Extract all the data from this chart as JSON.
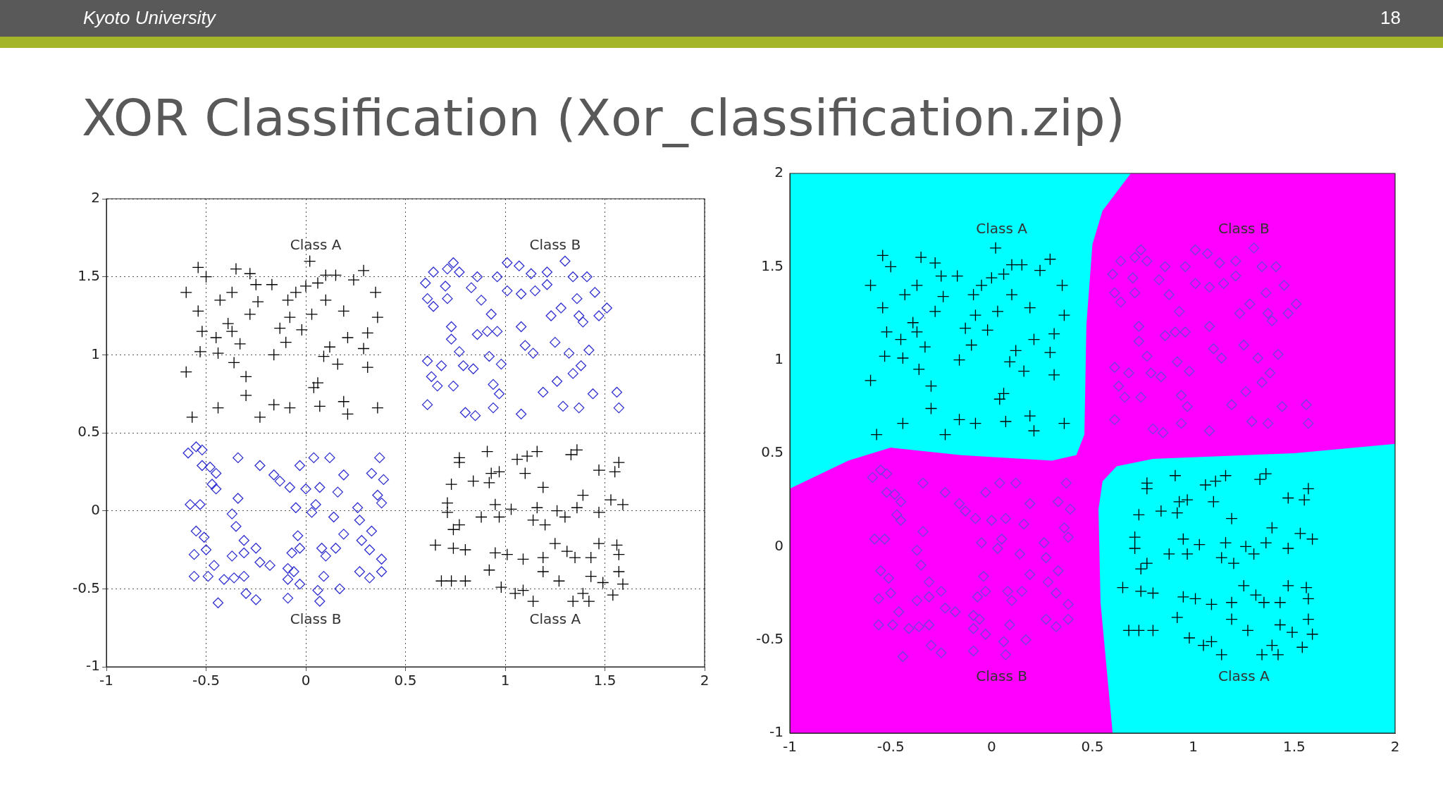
{
  "chart_data": [
    {
      "type": "scatter",
      "title": "XOR Classification (Xor_classification.zip)",
      "xlim": [
        -1,
        2
      ],
      "ylim": [
        -1,
        2
      ],
      "xticks": [
        -1,
        -0.5,
        0,
        0.5,
        1,
        1.5,
        2
      ],
      "yticks": [
        -1,
        -0.5,
        0,
        0.5,
        1,
        1.5,
        2
      ],
      "grid": true,
      "line_style": "dotted",
      "annotations": [
        "Kyoto University",
        "18",
        "Class A",
        "Class B",
        "Class B",
        "Class A"
      ],
      "series": [
        {
          "color": "#000000",
          "marker": "cross",
          "x": [
            -0.54,
            -0.5,
            -0.6,
            -0.54,
            -0.52,
            -0.53,
            -0.6,
            -0.57,
            -0.44,
            -0.43,
            -0.37,
            -0.35,
            -0.28,
            -0.25,
            -0.17,
            -0.24,
            -0.28,
            -0.39,
            -0.37,
            -0.45,
            -0.33,
            -0.44,
            -0.36,
            -0.3,
            -0.3,
            -0.23,
            -0.16,
            -0.08,
            -0.16,
            -0.1,
            -0.13,
            -0.08,
            -0.09,
            -0.05,
            0,
            0.02,
            0.06,
            0.1,
            0.15,
            0.1,
            0.03,
            -0.02,
            0.19,
            0.21,
            0.12,
            0.09,
            0.16,
            0.06,
            0.04,
            0.07,
            0.19,
            0.21,
            0.36,
            0.31,
            0.29,
            0.31,
            0.36,
            0.35,
            0.29,
            0.24,
            0.77,
            0.77,
            0.91,
            1.06,
            1.11,
            1.16,
            1.1,
            1.33,
            1.36,
            1.47,
            1.55,
            1.57,
            0.93,
            0.97,
            0.84,
            0.92,
            0.73,
            1.19,
            1.39,
            1.36,
            1.53,
            1.59,
            1.47,
            0.71,
            0.71,
            0.88,
            0.95,
            0.97,
            1.03,
            1.16,
            1.14,
            1.2,
            1.26,
            1.3,
            0.74,
            0.77,
            0.65,
            0.74,
            0.8,
            0.95,
            1.01,
            1.09,
            1.19,
            1.19,
            1.25,
            1.31,
            1.35,
            1.43,
            1.47,
            1.56,
            1.57,
            1.57,
            0.92,
            0.68,
            0.73,
            0.8,
            0.98,
            1.05,
            1.09,
            1.14,
            1.27,
            1.34,
            1.39,
            1.42,
            1.43,
            1.49,
            1.54,
            1.59
          ],
          "values": [
            1.56,
            1.5,
            1.4,
            1.28,
            1.15,
            1.02,
            0.89,
            0.6,
            0.66,
            1.35,
            1.4,
            1.55,
            1.52,
            1.45,
            1.45,
            1.34,
            1.26,
            1.2,
            1.15,
            1.11,
            1.07,
            1.01,
            0.95,
            0.86,
            0.74,
            0.6,
            0.68,
            0.66,
            1,
            1.08,
            1.17,
            1.24,
            1.35,
            1.4,
            1.44,
            1.6,
            1.46,
            1.51,
            1.51,
            1.35,
            1.26,
            1.16,
            1.28,
            1.11,
            1.05,
            0.99,
            0.94,
            0.82,
            0.79,
            0.67,
            0.7,
            0.62,
            0.66,
            0.92,
            1.04,
            1.14,
            1.24,
            1.4,
            1.54,
            1.48,
            0.34,
            0.31,
            0.38,
            0.33,
            0.35,
            0.38,
            0.24,
            0.36,
            0.39,
            0.26,
            0.25,
            0.31,
            0.24,
            0.25,
            0.19,
            0.18,
            0.17,
            0.15,
            0.1,
            0.02,
            0.07,
            0.04,
            -0.01,
            0.05,
            -0.01,
            -0.04,
            0.04,
            -0.04,
            0.01,
            0.02,
            -0.06,
            -0.09,
            0,
            -0.04,
            -0.12,
            -0.09,
            -0.22,
            -0.24,
            -0.25,
            -0.27,
            -0.28,
            -0.31,
            -0.3,
            -0.39,
            -0.21,
            -0.26,
            -0.3,
            -0.3,
            -0.21,
            -0.22,
            -0.28,
            -0.39,
            -0.38,
            -0.45,
            -0.45,
            -0.45,
            -0.49,
            -0.53,
            -0.51,
            -0.58,
            -0.45,
            -0.58,
            -0.53,
            -0.58,
            -0.42,
            -0.46,
            -0.54,
            -0.47
          ]
        },
        {
          "color": "#3030d0",
          "marker": "diamond",
          "x": [
            0.6,
            0.61,
            0.64,
            0.71,
            0.74,
            0.77,
            0.7,
            0.71,
            0.64,
            0.73,
            0.73,
            0.77,
            0.61,
            0.68,
            0.63,
            0.66,
            0.74,
            0.61,
            0.8,
            0.85,
            0.94,
            0.97,
            0.94,
            0.84,
            0.79,
            0.92,
            0.98,
            0.86,
            0.91,
            0.96,
            0.93,
            0.88,
            0.83,
            0.86,
            0.96,
            1.01,
            1.07,
            1.01,
            1.08,
            1.13,
            1.15,
            1.21,
            1.21,
            1.3,
            1.34,
            1.41,
            1.45,
            1.36,
            1.28,
            1.23,
            1.37,
            1.39,
            1.47,
            1.51,
            1.08,
            1.25,
            1.1,
            1.14,
            1.32,
            1.42,
            1.38,
            1.34,
            1.26,
            1.19,
            1.29,
            1.37,
            1.44,
            1.08,
            1.56,
            1.57,
            -0.59,
            -0.55,
            -0.52,
            -0.52,
            -0.48,
            -0.45,
            -0.47,
            -0.45,
            -0.58,
            -0.53,
            -0.55,
            -0.51,
            -0.5,
            -0.56,
            -0.56,
            -0.49,
            -0.46,
            -0.44,
            -0.41,
            -0.36,
            -0.37,
            -0.31,
            -0.31,
            -0.35,
            -0.37,
            -0.34,
            -0.34,
            -0.3,
            -0.25,
            -0.31,
            -0.25,
            -0.23,
            -0.18,
            -0.23,
            -0.16,
            -0.13,
            -0.08,
            -0.03,
            0.04,
            0.12,
            0,
            -0.05,
            0.03,
            0.07,
            0.05,
            0.16,
            0.19,
            0.14,
            -0.04,
            -0.07,
            -0.03,
            -0.09,
            -0.06,
            -0.09,
            -0.03,
            -0.09,
            0.06,
            0.07,
            0.09,
            0.08,
            0.1,
            0.15,
            0.19,
            0.17,
            0.26,
            0.27,
            0.28,
            0.32,
            0.27,
            0.32,
            0.38,
            0.38,
            0.38,
            0.36,
            0.33,
            0.39,
            0.37,
            0.33
          ],
          "values": [
            1.46,
            1.36,
            1.53,
            1.55,
            1.59,
            1.53,
            1.44,
            1.36,
            1.31,
            1.18,
            1.1,
            1.02,
            0.96,
            0.93,
            0.86,
            0.8,
            0.8,
            0.68,
            0.63,
            0.61,
            0.66,
            0.75,
            0.81,
            0.91,
            0.93,
            0.99,
            0.94,
            1.13,
            1.15,
            1.15,
            1.26,
            1.35,
            1.43,
            1.5,
            1.5,
            1.59,
            1.57,
            1.41,
            1.39,
            1.52,
            1.41,
            1.53,
            1.45,
            1.6,
            1.5,
            1.5,
            1.4,
            1.36,
            1.3,
            1.25,
            1.25,
            1.21,
            1.25,
            1.3,
            1.18,
            1.08,
            1.06,
            1.01,
            1.01,
            1.03,
            0.93,
            0.88,
            0.83,
            0.76,
            0.67,
            0.66,
            0.75,
            0.62,
            0.76,
            0.66,
            0.37,
            0.41,
            0.39,
            0.29,
            0.28,
            0.24,
            0.17,
            0.14,
            0.04,
            0.04,
            -0.13,
            -0.17,
            -0.25,
            -0.28,
            -0.42,
            -0.42,
            -0.35,
            -0.59,
            -0.44,
            -0.43,
            -0.29,
            -0.27,
            -0.19,
            -0.1,
            -0.02,
            0.08,
            0.34,
            -0.53,
            -0.57,
            -0.42,
            -0.24,
            -0.33,
            -0.35,
            0.29,
            0.23,
            0.19,
            0.15,
            0.29,
            0.34,
            0.34,
            0.14,
            0.02,
            -0.01,
            0.15,
            0.04,
            0.12,
            0.23,
            -0.04,
            -0.16,
            -0.27,
            -0.24,
            -0.37,
            -0.39,
            -0.44,
            -0.47,
            -0.56,
            -0.51,
            -0.58,
            -0.42,
            -0.24,
            -0.29,
            -0.24,
            -0.15,
            -0.5,
            0.02,
            -0.06,
            -0.19,
            -0.25,
            -0.39,
            -0.43,
            -0.31,
            -0.39,
            0.05,
            0.1,
            0.24,
            0.2,
            0.34,
            -0.13
          ]
        }
      ]
    },
    {
      "type": "scatter",
      "xlim": [
        -1,
        2
      ],
      "ylim": [
        -1,
        2
      ],
      "xticks": [
        -1,
        -0.5,
        0,
        0.5,
        1,
        1.5,
        2
      ],
      "yticks": [
        -1,
        -0.5,
        0,
        0.5,
        1,
        1.5,
        2
      ],
      "annotations": [
        "Class A",
        "Class B",
        "Class B",
        "Class A"
      ],
      "series": [
        {
          "color": "#000000",
          "marker": "cross",
          "x": [
            -0.54,
            -0.5,
            -0.6,
            -0.54,
            -0.52,
            -0.53,
            -0.6,
            -0.57,
            -0.44,
            -0.43,
            -0.37,
            -0.35,
            -0.28,
            -0.25,
            -0.17,
            -0.24,
            -0.28,
            -0.39,
            -0.37,
            -0.45,
            -0.33,
            -0.44,
            -0.36,
            -0.3,
            -0.3,
            -0.23,
            -0.16,
            -0.08,
            -0.16,
            -0.1,
            -0.13,
            -0.08,
            -0.09,
            -0.05,
            0,
            0.02,
            0.06,
            0.1,
            0.15,
            0.1,
            0.03,
            -0.02,
            0.19,
            0.21,
            0.12,
            0.09,
            0.16,
            0.06,
            0.04,
            0.07,
            0.19,
            0.21,
            0.36,
            0.31,
            0.29,
            0.31,
            0.36,
            0.35,
            0.29,
            0.24,
            0.77,
            0.77,
            0.91,
            1.06,
            1.11,
            1.16,
            1.1,
            1.33,
            1.36,
            1.47,
            1.55,
            1.57,
            0.93,
            0.97,
            0.84,
            0.92,
            0.73,
            1.19,
            1.39,
            1.36,
            1.53,
            1.59,
            1.47,
            0.71,
            0.71,
            0.88,
            0.95,
            0.97,
            1.03,
            1.16,
            1.14,
            1.2,
            1.26,
            1.3,
            0.74,
            0.77,
            0.65,
            0.74,
            0.8,
            0.95,
            1.01,
            1.09,
            1.19,
            1.19,
            1.25,
            1.31,
            1.35,
            1.43,
            1.47,
            1.56,
            1.57,
            1.57,
            0.92,
            0.68,
            0.73,
            0.8,
            0.98,
            1.05,
            1.09,
            1.14,
            1.27,
            1.34,
            1.39,
            1.42,
            1.43,
            1.49,
            1.54,
            1.59
          ],
          "values": [
            1.56,
            1.5,
            1.4,
            1.28,
            1.15,
            1.02,
            0.89,
            0.6,
            0.66,
            1.35,
            1.4,
            1.55,
            1.52,
            1.45,
            1.45,
            1.34,
            1.26,
            1.2,
            1.15,
            1.11,
            1.07,
            1.01,
            0.95,
            0.86,
            0.74,
            0.6,
            0.68,
            0.66,
            1,
            1.08,
            1.17,
            1.24,
            1.35,
            1.4,
            1.44,
            1.6,
            1.46,
            1.51,
            1.51,
            1.35,
            1.26,
            1.16,
            1.28,
            1.11,
            1.05,
            0.99,
            0.94,
            0.82,
            0.79,
            0.67,
            0.7,
            0.62,
            0.66,
            0.92,
            1.04,
            1.14,
            1.24,
            1.4,
            1.54,
            1.48,
            0.34,
            0.31,
            0.38,
            0.33,
            0.35,
            0.38,
            0.24,
            0.36,
            0.39,
            0.26,
            0.25,
            0.31,
            0.24,
            0.25,
            0.19,
            0.18,
            0.17,
            0.15,
            0.1,
            0.02,
            0.07,
            0.04,
            -0.01,
            0.05,
            -0.01,
            -0.04,
            0.04,
            -0.04,
            0.01,
            0.02,
            -0.06,
            -0.09,
            0,
            -0.04,
            -0.12,
            -0.09,
            -0.22,
            -0.24,
            -0.25,
            -0.27,
            -0.28,
            -0.31,
            -0.3,
            -0.39,
            -0.21,
            -0.26,
            -0.3,
            -0.3,
            -0.21,
            -0.22,
            -0.28,
            -0.39,
            -0.38,
            -0.45,
            -0.45,
            -0.45,
            -0.49,
            -0.53,
            -0.51,
            -0.58,
            -0.45,
            -0.58,
            -0.53,
            -0.58,
            -0.42,
            -0.46,
            -0.54,
            -0.47
          ]
        },
        {
          "color": "#7040d8",
          "marker": "diamond",
          "x": [
            0.6,
            0.61,
            0.64,
            0.71,
            0.74,
            0.77,
            0.7,
            0.71,
            0.64,
            0.73,
            0.73,
            0.77,
            0.61,
            0.68,
            0.63,
            0.66,
            0.74,
            0.61,
            0.8,
            0.85,
            0.94,
            0.97,
            0.94,
            0.84,
            0.79,
            0.92,
            0.98,
            0.86,
            0.91,
            0.96,
            0.93,
            0.88,
            0.83,
            0.86,
            0.96,
            1.01,
            1.07,
            1.01,
            1.08,
            1.13,
            1.15,
            1.21,
            1.21,
            1.3,
            1.34,
            1.41,
            1.45,
            1.36,
            1.28,
            1.23,
            1.37,
            1.39,
            1.47,
            1.51,
            1.08,
            1.25,
            1.1,
            1.14,
            1.32,
            1.42,
            1.38,
            1.34,
            1.26,
            1.19,
            1.29,
            1.37,
            1.44,
            1.08,
            1.56,
            1.57,
            -0.59,
            -0.55,
            -0.52,
            -0.52,
            -0.48,
            -0.45,
            -0.47,
            -0.45,
            -0.58,
            -0.53,
            -0.55,
            -0.51,
            -0.5,
            -0.56,
            -0.56,
            -0.49,
            -0.46,
            -0.44,
            -0.41,
            -0.36,
            -0.37,
            -0.31,
            -0.31,
            -0.35,
            -0.37,
            -0.34,
            -0.34,
            -0.3,
            -0.25,
            -0.31,
            -0.25,
            -0.23,
            -0.18,
            -0.23,
            -0.16,
            -0.13,
            -0.08,
            -0.03,
            0.04,
            0.12,
            0,
            -0.05,
            0.03,
            0.07,
            0.05,
            0.16,
            0.19,
            0.14,
            -0.04,
            -0.07,
            -0.03,
            -0.09,
            -0.06,
            -0.09,
            -0.03,
            -0.09,
            0.06,
            0.07,
            0.09,
            0.08,
            0.1,
            0.15,
            0.19,
            0.17,
            0.26,
            0.27,
            0.28,
            0.32,
            0.27,
            0.32,
            0.38,
            0.38,
            0.38,
            0.36,
            0.33,
            0.39,
            0.37,
            0.33
          ],
          "values": [
            1.46,
            1.36,
            1.53,
            1.55,
            1.59,
            1.53,
            1.44,
            1.36,
            1.31,
            1.18,
            1.1,
            1.02,
            0.96,
            0.93,
            0.86,
            0.8,
            0.8,
            0.68,
            0.63,
            0.61,
            0.66,
            0.75,
            0.81,
            0.91,
            0.93,
            0.99,
            0.94,
            1.13,
            1.15,
            1.15,
            1.26,
            1.35,
            1.43,
            1.5,
            1.5,
            1.59,
            1.57,
            1.41,
            1.39,
            1.52,
            1.41,
            1.53,
            1.45,
            1.6,
            1.5,
            1.5,
            1.4,
            1.36,
            1.3,
            1.25,
            1.25,
            1.21,
            1.25,
            1.3,
            1.18,
            1.08,
            1.06,
            1.01,
            1.01,
            1.03,
            0.93,
            0.88,
            0.83,
            0.76,
            0.67,
            0.66,
            0.75,
            0.62,
            0.76,
            0.66,
            0.37,
            0.41,
            0.39,
            0.29,
            0.28,
            0.24,
            0.17,
            0.14,
            0.04,
            0.04,
            -0.13,
            -0.17,
            -0.25,
            -0.28,
            -0.42,
            -0.42,
            -0.35,
            -0.59,
            -0.44,
            -0.43,
            -0.29,
            -0.27,
            -0.19,
            -0.1,
            -0.02,
            0.08,
            0.34,
            -0.53,
            -0.57,
            -0.42,
            -0.24,
            -0.33,
            -0.35,
            0.29,
            0.23,
            0.19,
            0.15,
            0.29,
            0.34,
            0.34,
            0.14,
            0.02,
            -0.01,
            0.15,
            0.04,
            0.12,
            0.23,
            -0.04,
            -0.16,
            -0.27,
            -0.24,
            -0.37,
            -0.39,
            -0.44,
            -0.47,
            -0.56,
            -0.51,
            -0.58,
            -0.42,
            -0.24,
            -0.29,
            -0.24,
            -0.15,
            -0.5,
            0.02,
            -0.06,
            -0.19,
            -0.25,
            -0.39,
            -0.43,
            -0.31,
            -0.39,
            0.05,
            0.1,
            0.24,
            0.2,
            0.34,
            -0.13
          ]
        }
      ]
    }
  ]
}
